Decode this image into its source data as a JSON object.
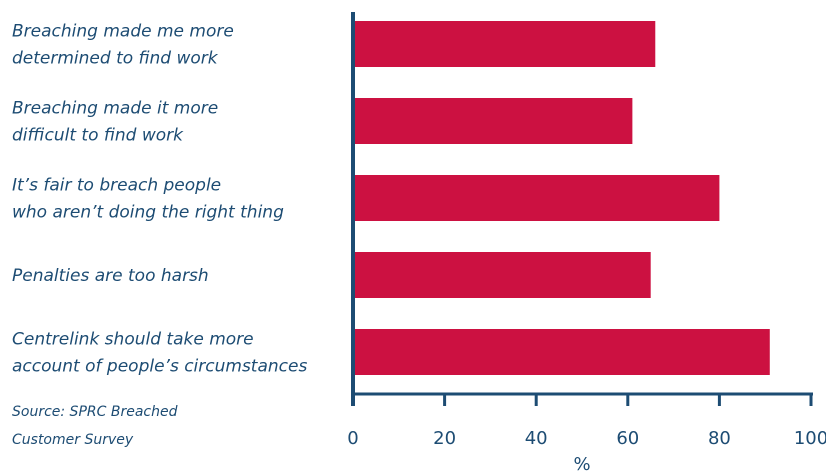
{
  "colors": {
    "bar": "#cc1141",
    "axis": "#1d4c73",
    "text": "#1d4c73"
  },
  "source": [
    "Source: SPRC Breached",
    "Customer Survey"
  ],
  "chart_data": {
    "type": "bar",
    "orientation": "horizontal",
    "categories": [
      [
        "Breaching made me more",
        "determined to find work"
      ],
      [
        "Breaching made it more",
        "difficult to find work"
      ],
      [
        "It’s fair to breach people",
        "who aren’t doing the right thing"
      ],
      [
        "Penalties are too harsh"
      ],
      [
        "Centrelink should take more",
        "account of people’s circumstances"
      ]
    ],
    "values": [
      66,
      61,
      80,
      65,
      91
    ],
    "xlabel": "%",
    "xlim": [
      0,
      100
    ],
    "xticks": [
      0,
      20,
      40,
      60,
      80,
      100
    ],
    "grid": false
  }
}
